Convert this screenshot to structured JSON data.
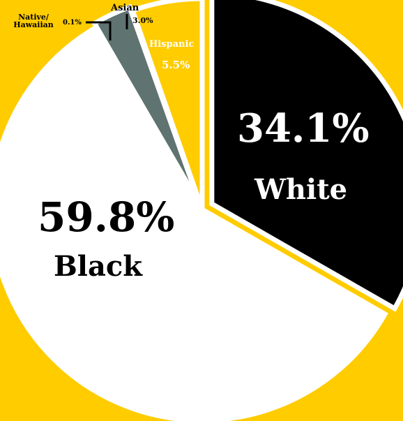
{
  "chart_data": {
    "type": "pie",
    "title": "",
    "slices": [
      {
        "label": "White",
        "value": 34.1,
        "display": "34.1%",
        "color": "#000000"
      },
      {
        "label": "Black",
        "value": 59.8,
        "display": "59.8%",
        "color": "#FFFFFF"
      },
      {
        "label": "Asian",
        "value": 3.0,
        "display": "3.0%",
        "color": "#5F7370"
      },
      {
        "label": "Native/ Hawaiian",
        "value": 0.1,
        "display": "0.1%",
        "color": "#FFFFFF"
      },
      {
        "label": "Hispanic",
        "value": 5.5,
        "display": "5.5%",
        "color": "#FFCC00"
      }
    ],
    "background": "#FFCC00",
    "legend": "none"
  }
}
